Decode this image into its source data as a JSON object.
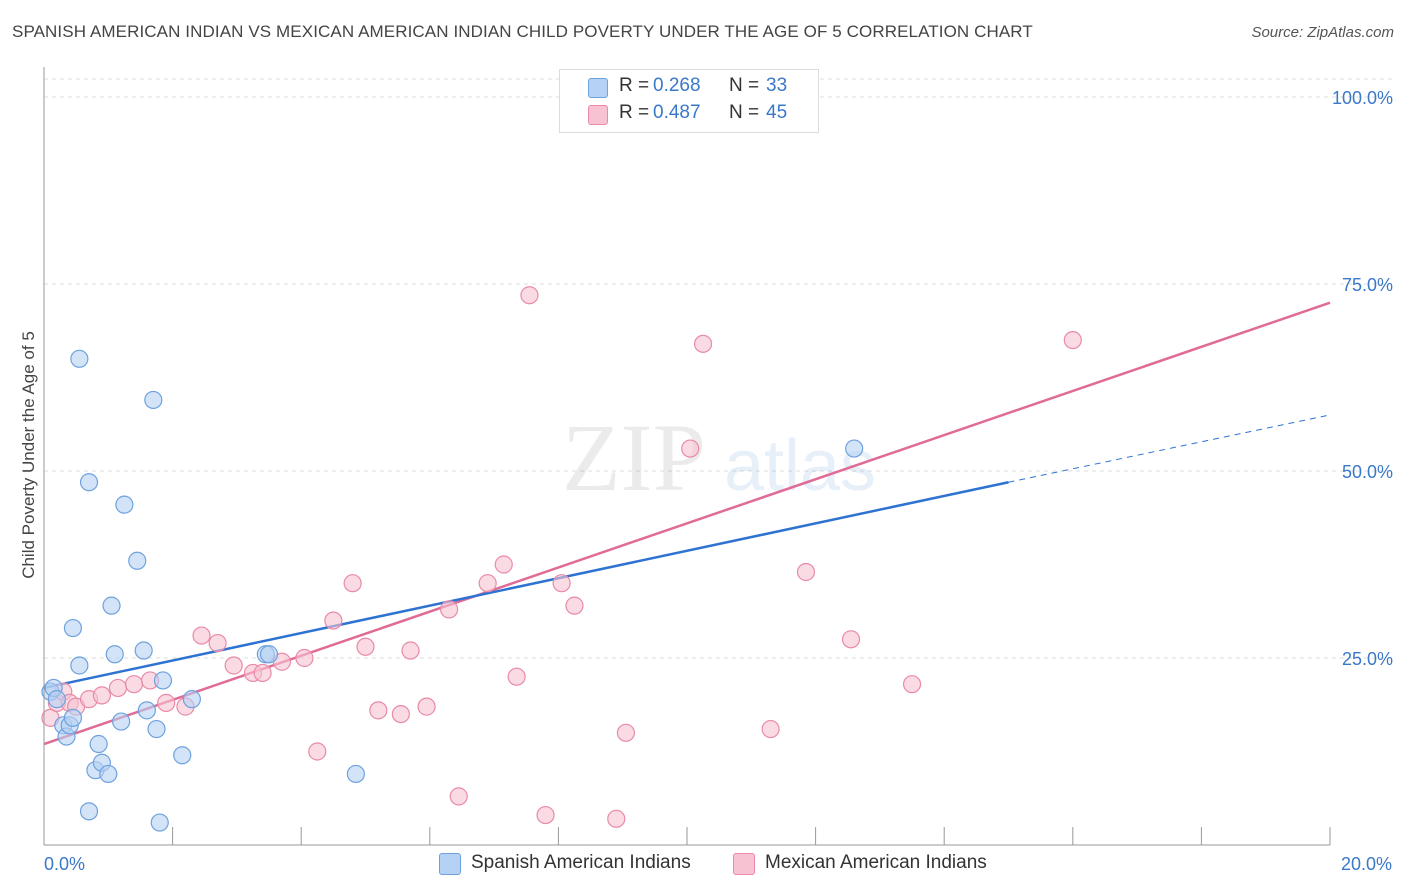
{
  "title": "SPANISH AMERICAN INDIAN VS MEXICAN AMERICAN INDIAN CHILD POVERTY UNDER THE AGE OF 5 CORRELATION CHART",
  "source": "Source: ZipAtlas.com",
  "watermark": {
    "zip": "ZIP",
    "atlas": "atlas"
  },
  "legend": {
    "rows": [
      {
        "r_label": "R =",
        "r_value": "0.268",
        "n_label": "N =",
        "n_value": "33"
      },
      {
        "r_label": "R =",
        "r_value": "0.487",
        "n_label": "N =",
        "n_value": "45"
      }
    ]
  },
  "colors": {
    "blue_fill": "#b5d1f3",
    "blue_stroke": "#6ea2de",
    "blue_line": "#2e72d2",
    "pink_fill": "#f7c3d2",
    "pink_stroke": "#e98aa8",
    "pink_line": "#e06b96",
    "axis_label": "#3a78c9",
    "grid": "#dddddd"
  },
  "chart_data": {
    "type": "scatter",
    "title": "SPANISH AMERICAN INDIAN VS MEXICAN AMERICAN INDIAN CHILD POVERTY UNDER THE AGE OF 5 CORRELATION CHART",
    "ylabel": "Child Poverty Under the Age of 5",
    "xlabel": "",
    "xlim": [
      0,
      20
    ],
    "ylim": [
      0,
      100
    ],
    "x_tick_labels": [
      {
        "value": 0,
        "label": "0.0%"
      },
      {
        "value": 20,
        "label": "20.0%"
      }
    ],
    "y_tick_labels": [
      {
        "value": 25,
        "label": "25.0%"
      },
      {
        "value": 50,
        "label": "50.0%"
      },
      {
        "value": 75,
        "label": "75.0%"
      },
      {
        "value": 100,
        "label": "100.0%"
      }
    ],
    "grid": true,
    "legend_position": "bottom",
    "series": [
      {
        "name": "Spanish American Indians",
        "color": "#6ea2de",
        "points": [
          [
            0.1,
            20.5
          ],
          [
            0.15,
            21.0
          ],
          [
            0.2,
            19.5
          ],
          [
            0.3,
            16.0
          ],
          [
            0.35,
            14.5
          ],
          [
            0.4,
            16.0
          ],
          [
            0.45,
            17.0
          ],
          [
            0.45,
            29.0
          ],
          [
            0.55,
            24.0
          ],
          [
            0.55,
            65.0
          ],
          [
            0.7,
            48.5
          ],
          [
            0.7,
            4.5
          ],
          [
            0.8,
            10.0
          ],
          [
            0.85,
            13.5
          ],
          [
            0.9,
            11.0
          ],
          [
            1.0,
            9.5
          ],
          [
            1.05,
            32.0
          ],
          [
            1.1,
            25.5
          ],
          [
            1.2,
            16.5
          ],
          [
            1.25,
            45.5
          ],
          [
            1.45,
            38.0
          ],
          [
            1.55,
            26.0
          ],
          [
            1.6,
            18.0
          ],
          [
            1.7,
            59.5
          ],
          [
            1.75,
            15.5
          ],
          [
            1.8,
            3.0
          ],
          [
            1.85,
            22.0
          ],
          [
            2.15,
            12.0
          ],
          [
            2.3,
            19.5
          ],
          [
            3.45,
            25.5
          ],
          [
            3.5,
            25.5
          ],
          [
            4.85,
            9.5
          ],
          [
            12.6,
            53.0
          ]
        ]
      },
      {
        "name": "Mexican American Indians",
        "color": "#e98aa8",
        "points": [
          [
            0.1,
            17.0
          ],
          [
            0.2,
            19.0
          ],
          [
            0.3,
            20.5
          ],
          [
            0.4,
            19.0
          ],
          [
            0.5,
            18.5
          ],
          [
            0.7,
            19.5
          ],
          [
            0.9,
            20.0
          ],
          [
            1.15,
            21.0
          ],
          [
            1.4,
            21.5
          ],
          [
            1.65,
            22.0
          ],
          [
            1.9,
            19.0
          ],
          [
            2.2,
            18.5
          ],
          [
            2.45,
            28.0
          ],
          [
            2.7,
            27.0
          ],
          [
            2.95,
            24.0
          ],
          [
            3.25,
            23.0
          ],
          [
            3.4,
            23.0
          ],
          [
            3.7,
            24.5
          ],
          [
            4.05,
            25.0
          ],
          [
            4.25,
            12.5
          ],
          [
            4.5,
            30.0
          ],
          [
            4.8,
            35.0
          ],
          [
            5.0,
            26.5
          ],
          [
            5.2,
            18.0
          ],
          [
            5.55,
            17.5
          ],
          [
            5.7,
            26.0
          ],
          [
            5.95,
            18.5
          ],
          [
            6.3,
            31.5
          ],
          [
            6.45,
            6.5
          ],
          [
            6.9,
            35.0
          ],
          [
            7.15,
            37.5
          ],
          [
            7.35,
            22.5
          ],
          [
            7.55,
            73.5
          ],
          [
            7.8,
            4.0
          ],
          [
            8.05,
            35.0
          ],
          [
            8.25,
            32.0
          ],
          [
            8.9,
            3.5
          ],
          [
            9.05,
            15.0
          ],
          [
            10.05,
            53.0
          ],
          [
            10.25,
            67.0
          ],
          [
            11.3,
            15.5
          ],
          [
            11.85,
            36.5
          ],
          [
            12.55,
            27.5
          ],
          [
            13.5,
            21.5
          ],
          [
            16.0,
            67.5
          ]
        ]
      }
    ],
    "trend_lines": [
      {
        "series": "Spanish American Indians",
        "solid": [
          [
            0,
            21.0
          ],
          [
            15.0,
            48.5
          ]
        ],
        "dashed": [
          [
            15.0,
            48.5
          ],
          [
            20.0,
            57.5
          ]
        ]
      },
      {
        "series": "Mexican American Indians",
        "solid": [
          [
            0,
            13.5
          ],
          [
            20.0,
            72.5
          ]
        ]
      }
    ]
  },
  "bottom_legend": [
    {
      "label": "Spanish American Indians"
    },
    {
      "label": "Mexican American Indians"
    }
  ]
}
